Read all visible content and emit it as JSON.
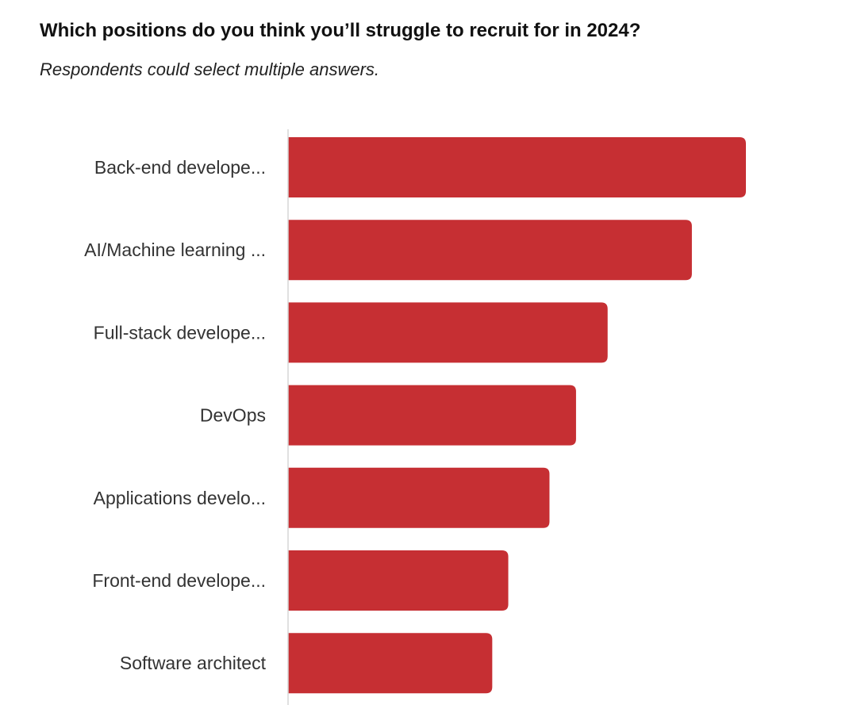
{
  "title": "Which positions do you think you’ll struggle to recruit for in 2024?",
  "subtitle": "Respondents could select multiple answers.",
  "colors": {
    "bar": "#c62f33",
    "axis": "#d6d6d6",
    "label": "#333333"
  },
  "chart_data": {
    "type": "bar",
    "orientation": "horizontal",
    "categories": [
      "Back-end develope...",
      "AI/Machine learning ...",
      "Full-stack develope...",
      "DevOps",
      "Applications develo...",
      "Front-end develope...",
      "Software architect"
    ],
    "values": [
      100,
      88.2,
      69.8,
      62.9,
      57.1,
      48.1,
      44.6
    ],
    "xlim": [
      0,
      100
    ],
    "grid": false,
    "legend": "none"
  }
}
